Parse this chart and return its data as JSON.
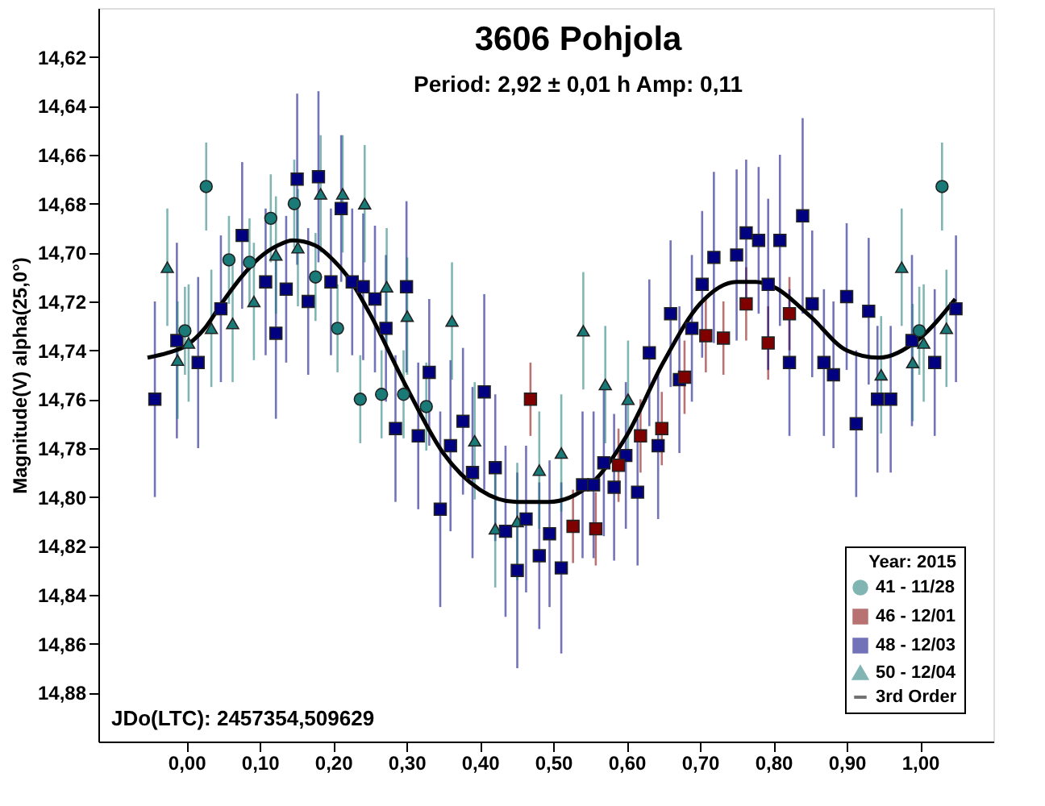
{
  "chart_data": {
    "type": "scatter",
    "title": "3606 Pohjola",
    "subtitle": "Period: 2,92 ± 0,01 h  Amp: 0,11",
    "ylabel": "Magnitude(V) alpha(25,0°)",
    "legend_title": "Year: 2015",
    "legend": "bottom right",
    "grid": false,
    "annotations": [
      "JDo(LTC): 2457354,509629"
    ],
    "xlim": [
      -0.12,
      1.1
    ],
    "xticks": [
      {
        "value": 0.0,
        "label": "0,00"
      },
      {
        "value": 0.1,
        "label": "0,10"
      },
      {
        "value": 0.2,
        "label": "0,20"
      },
      {
        "value": 0.3,
        "label": "0,30"
      },
      {
        "value": 0.4,
        "label": "0,40"
      },
      {
        "value": 0.5,
        "label": "0,50"
      },
      {
        "value": 0.6,
        "label": "0,60"
      },
      {
        "value": 0.7,
        "label": "0,70"
      },
      {
        "value": 0.8,
        "label": "0,80"
      },
      {
        "value": 0.9,
        "label": "0,90"
      },
      {
        "value": 1.0,
        "label": "1,00"
      }
    ],
    "ylim": [
      14.9,
      14.6
    ],
    "yticks": [
      {
        "value": 14.62,
        "label": "14,62"
      },
      {
        "value": 14.64,
        "label": "14,64"
      },
      {
        "value": 14.66,
        "label": "14,66"
      },
      {
        "value": 14.68,
        "label": "14,68"
      },
      {
        "value": 14.7,
        "label": "14,70"
      },
      {
        "value": 14.72,
        "label": "14,72"
      },
      {
        "value": 14.74,
        "label": "14,74"
      },
      {
        "value": 14.76,
        "label": "14,76"
      },
      {
        "value": 14.78,
        "label": "14,78"
      },
      {
        "value": 14.8,
        "label": "14,80"
      },
      {
        "value": 14.82,
        "label": "14,82"
      },
      {
        "value": 14.84,
        "label": "14,84"
      },
      {
        "value": 14.86,
        "label": "14,86"
      },
      {
        "value": 14.88,
        "label": "14,88"
      }
    ],
    "series": [
      {
        "name": "41 - 11/28",
        "marker": "circle",
        "color": "#1a7a78",
        "x": [
          0.027,
          -0.002,
          0.058,
          0.086,
          0.115,
          0.147,
          0.176,
          0.206,
          0.237,
          0.266,
          0.296,
          0.327,
          0.999,
          1.03
        ],
        "values": [
          14.673,
          14.732,
          14.703,
          14.704,
          14.686,
          14.68,
          14.71,
          14.731,
          14.76,
          14.758,
          14.758,
          14.763,
          14.732,
          14.673
        ],
        "errors": [
          0.018,
          0.018,
          0.018,
          0.018,
          0.018,
          0.018,
          0.018,
          0.018,
          0.018,
          0.018,
          0.018,
          0.018,
          0.018,
          0.018
        ]
      },
      {
        "name": "46 - 12/01",
        "marker": "square",
        "color": "#800000",
        "x": [
          0.469,
          0.527,
          0.558,
          0.589,
          0.619,
          0.648,
          0.679,
          0.708,
          0.732,
          0.763,
          0.793,
          0.822
        ],
        "values": [
          14.76,
          14.812,
          14.813,
          14.787,
          14.775,
          14.772,
          14.751,
          14.734,
          14.735,
          14.721,
          14.737,
          14.725
        ],
        "errors": [
          0.015,
          0.015,
          0.015,
          0.015,
          0.015,
          0.015,
          0.015,
          0.015,
          0.015,
          0.015,
          0.015,
          0.015
        ]
      },
      {
        "name": "48 - 12/03",
        "marker": "square",
        "color": "#000080",
        "x": [
          -0.043,
          -0.013,
          0.016,
          0.047,
          0.076,
          0.108,
          0.122,
          0.136,
          0.151,
          0.166,
          0.18,
          0.197,
          0.211,
          0.226,
          0.241,
          0.257,
          0.272,
          0.285,
          0.3,
          0.316,
          0.331,
          0.346,
          0.36,
          0.377,
          0.39,
          0.406,
          0.421,
          0.435,
          0.451,
          0.463,
          0.481,
          0.495,
          0.511,
          0.54,
          0.555,
          0.569,
          0.583,
          0.599,
          0.615,
          0.631,
          0.643,
          0.66,
          0.672,
          0.689,
          0.703,
          0.719,
          0.75,
          0.763,
          0.78,
          0.793,
          0.809,
          0.822,
          0.84,
          0.853,
          0.869,
          0.882,
          0.9,
          0.913,
          0.93,
          0.942,
          0.96,
          0.989,
          1.02,
          1.049
        ],
        "values": [
          14.76,
          14.736,
          14.745,
          14.723,
          14.693,
          14.712,
          14.733,
          14.715,
          14.67,
          14.72,
          14.669,
          14.712,
          14.682,
          14.712,
          14.714,
          14.719,
          14.731,
          14.772,
          14.714,
          14.775,
          14.749,
          14.805,
          14.779,
          14.769,
          14.79,
          14.757,
          14.788,
          14.814,
          14.83,
          14.809,
          14.824,
          14.815,
          14.829,
          14.795,
          14.795,
          14.786,
          14.796,
          14.783,
          14.798,
          14.741,
          14.779,
          14.725,
          14.752,
          14.731,
          14.713,
          14.702,
          14.701,
          14.692,
          14.695,
          14.713,
          14.695,
          14.745,
          14.685,
          14.721,
          14.745,
          14.75,
          14.718,
          14.77,
          14.724,
          14.76,
          14.76,
          14.736,
          14.745,
          14.723
        ],
        "errors": [
          0.04,
          0.04,
          0.035,
          0.03,
          0.03,
          0.03,
          0.035,
          0.03,
          0.035,
          0.03,
          0.035,
          0.03,
          0.03,
          0.03,
          0.03,
          0.03,
          0.03,
          0.03,
          0.035,
          0.03,
          0.03,
          0.04,
          0.035,
          0.03,
          0.035,
          0.04,
          0.03,
          0.035,
          0.04,
          0.03,
          0.03,
          0.03,
          0.035,
          0.03,
          0.03,
          0.03,
          0.03,
          0.03,
          0.03,
          0.03,
          0.03,
          0.03,
          0.03,
          0.03,
          0.03,
          0.035,
          0.035,
          0.03,
          0.03,
          0.035,
          0.035,
          0.03,
          0.04,
          0.03,
          0.03,
          0.03,
          0.03,
          0.03,
          0.03,
          0.03,
          0.03,
          0.035,
          0.03,
          0.03
        ]
      },
      {
        "name": "50 - 12/04",
        "marker": "triangle",
        "color": "#1a7a78",
        "x": [
          -0.026,
          -0.012,
          0.003,
          0.034,
          0.063,
          0.092,
          0.122,
          0.152,
          0.183,
          0.213,
          0.243,
          0.273,
          0.301,
          0.362,
          0.393,
          0.421,
          0.451,
          0.481,
          0.511,
          0.541,
          0.571,
          0.602,
          0.947,
          0.975,
          0.99,
          1.005,
          1.036
        ],
        "values": [
          14.706,
          14.744,
          14.737,
          14.731,
          14.729,
          14.72,
          14.701,
          14.698,
          14.676,
          14.676,
          14.68,
          14.714,
          14.726,
          14.728,
          14.777,
          14.813,
          14.81,
          14.789,
          14.782,
          14.732,
          14.754,
          14.76,
          14.75,
          14.706,
          14.745,
          14.737,
          14.731
        ],
        "errors": [
          0.024,
          0.024,
          0.024,
          0.024,
          0.024,
          0.024,
          0.024,
          0.024,
          0.024,
          0.024,
          0.024,
          0.024,
          0.024,
          0.024,
          0.024,
          0.024,
          0.024,
          0.024,
          0.024,
          0.024,
          0.024,
          0.024,
          0.024,
          0.024,
          0.024,
          0.024,
          0.024
        ]
      },
      {
        "name": "3rd Order",
        "type": "line",
        "color": "#000000",
        "x": [
          -0.053,
          -0.025,
          0.0,
          0.025,
          0.05,
          0.075,
          0.1,
          0.125,
          0.145,
          0.175,
          0.2,
          0.225,
          0.25,
          0.3,
          0.35,
          0.4,
          0.45,
          0.494,
          0.55,
          0.6,
          0.65,
          0.7,
          0.75,
          0.776,
          0.8,
          0.85,
          0.9,
          0.944,
          1.0,
          1.048
        ],
        "values": [
          14.743,
          14.741,
          14.738,
          14.731,
          14.72,
          14.71,
          14.702,
          14.697,
          14.695,
          14.697,
          14.703,
          14.712,
          14.725,
          14.755,
          14.782,
          14.797,
          14.802,
          14.802,
          14.795,
          14.775,
          14.745,
          14.721,
          14.712,
          14.712,
          14.714,
          14.726,
          14.74,
          14.743,
          14.735,
          14.719
        ]
      }
    ]
  }
}
